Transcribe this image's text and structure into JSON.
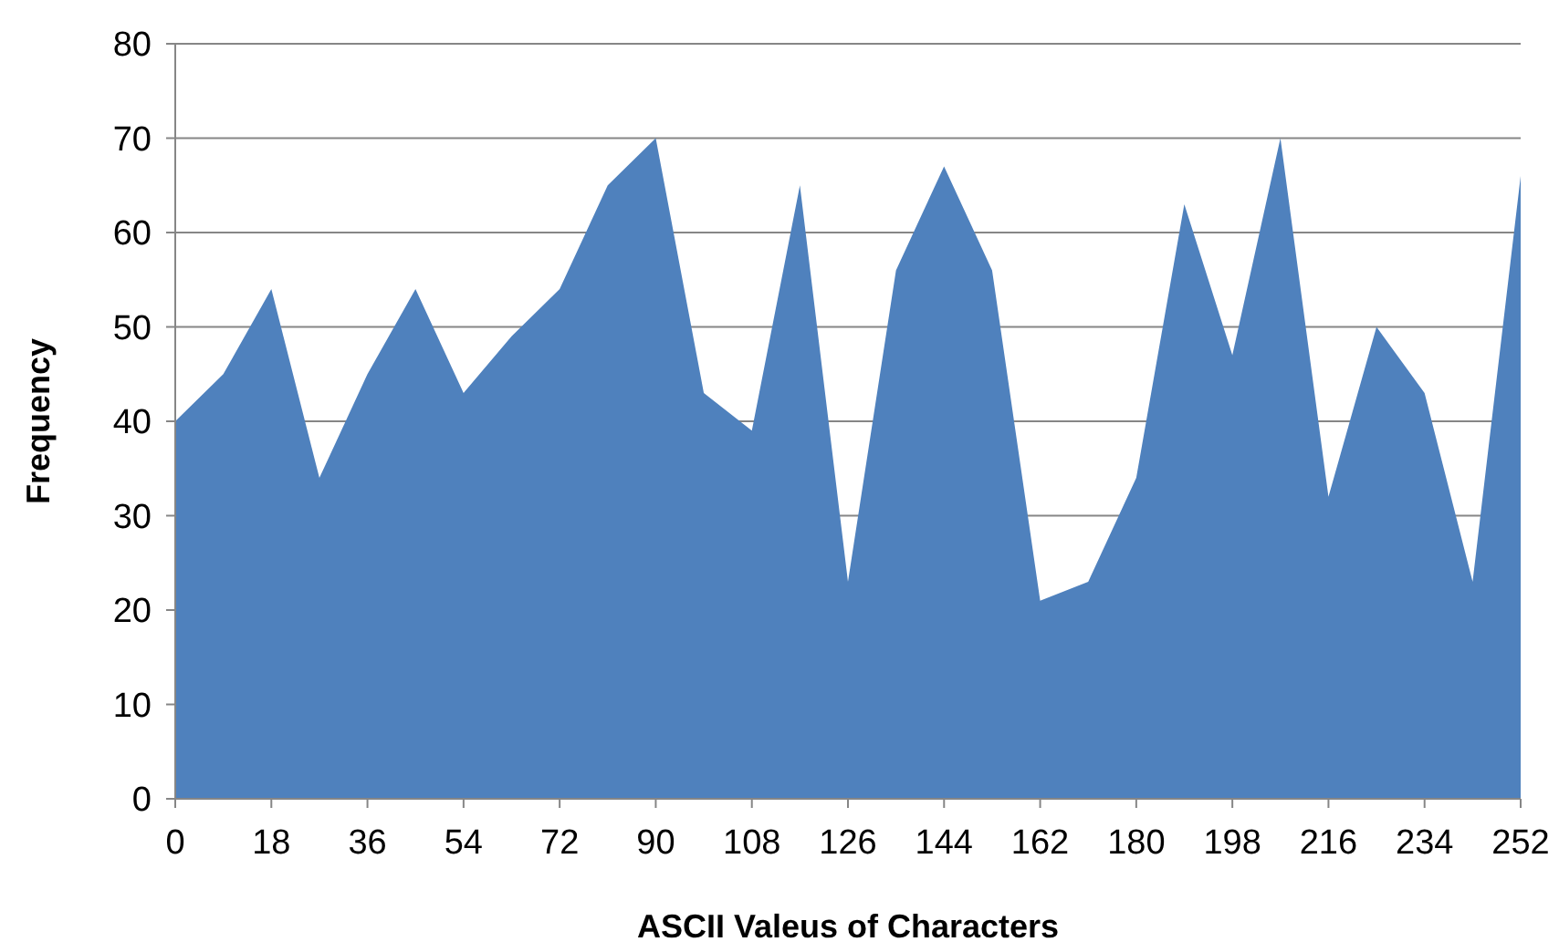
{
  "chart_data": {
    "type": "area",
    "xlabel": "ASCII Valeus of Characters",
    "ylabel": "Frequency",
    "x": [
      0,
      9,
      18,
      27,
      36,
      45,
      54,
      63,
      72,
      81,
      90,
      99,
      108,
      117,
      126,
      135,
      144,
      153,
      162,
      171,
      180,
      189,
      198,
      207,
      216,
      225,
      234,
      243,
      252
    ],
    "series": [
      {
        "color": "#4f81bd",
        "values": [
          40,
          45,
          54,
          34,
          45,
          54,
          43,
          49,
          54,
          65,
          70,
          43,
          39,
          65,
          23,
          56,
          67,
          56,
          21,
          23,
          34,
          63,
          47,
          70,
          32,
          50,
          43,
          23,
          66
        ]
      }
    ],
    "xlim": [
      0,
      252
    ],
    "xticks": [
      0,
      18,
      36,
      54,
      72,
      90,
      108,
      126,
      144,
      162,
      180,
      198,
      216,
      234,
      252
    ],
    "ylim": [
      0,
      80
    ],
    "yticks": [
      0,
      10,
      20,
      30,
      40,
      50,
      60,
      70,
      80
    ],
    "grid": "y"
  }
}
